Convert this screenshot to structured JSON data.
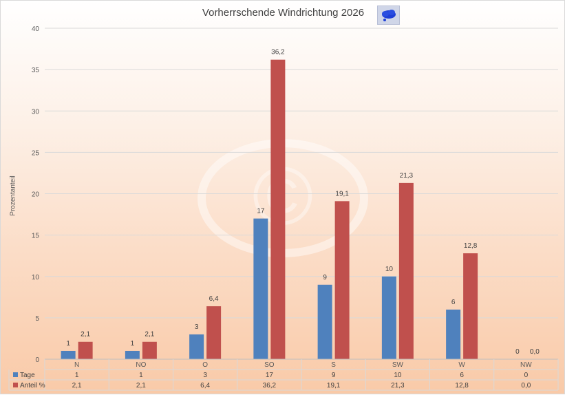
{
  "chart_data": {
    "type": "bar",
    "title": "Vorherrschende Windrichtung 2026",
    "xlabel": "",
    "ylabel": "Prozentanteil",
    "ylim": [
      0,
      40
    ],
    "yticks": [
      0,
      5,
      10,
      15,
      20,
      25,
      30,
      35,
      40
    ],
    "categories": [
      "N",
      "NO",
      "O",
      "SO",
      "S",
      "SW",
      "W",
      "NW"
    ],
    "series": [
      {
        "name": "Tage",
        "color": "#4f81bd",
        "values": [
          1,
          1,
          3,
          17,
          9,
          10,
          6,
          0
        ],
        "labels": [
          "1",
          "1",
          "3",
          "17",
          "9",
          "10",
          "6",
          "0"
        ]
      },
      {
        "name": "Anteil %",
        "color": "#c0504d",
        "values": [
          2.1,
          2.1,
          6.4,
          36.2,
          19.1,
          21.3,
          12.8,
          0.0
        ],
        "labels": [
          "2,1",
          "2,1",
          "6,4",
          "36,2",
          "19,1",
          "21,3",
          "12,8",
          "0,0"
        ]
      }
    ],
    "grid": true,
    "legend": "data-table"
  },
  "watermark": "©"
}
